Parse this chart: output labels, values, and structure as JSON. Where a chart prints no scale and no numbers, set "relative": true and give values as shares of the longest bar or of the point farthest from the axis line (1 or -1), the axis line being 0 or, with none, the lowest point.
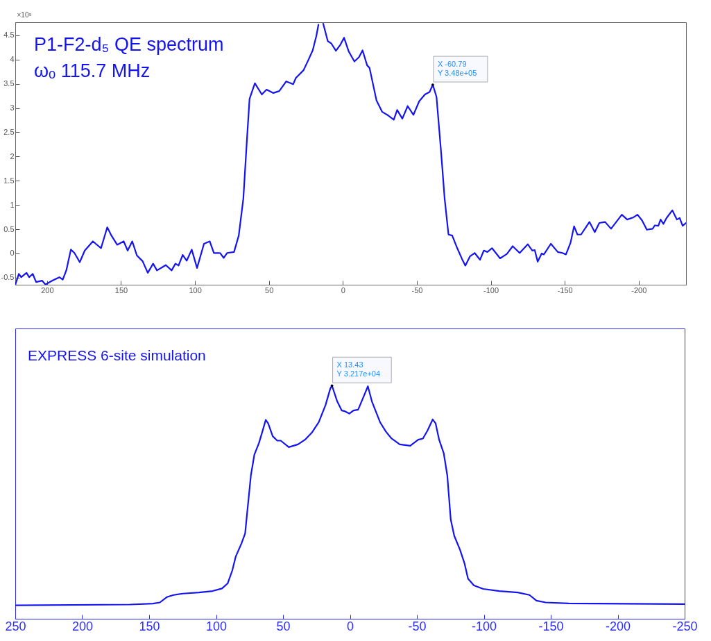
{
  "chart_data": [
    {
      "type": "line",
      "ylabel": "×10⁵",
      "xlim": [
        221.5,
        -232
      ],
      "ylim": [
        -0.645,
        4.77
      ],
      "xticks": [
        200,
        150,
        100,
        50,
        0,
        -50,
        -100,
        -150,
        -200
      ],
      "yticks": [
        -0.5,
        0,
        0.5,
        1,
        1.5,
        2,
        2.5,
        3,
        3.5,
        4,
        4.5
      ],
      "x": [
        221.4,
        219.1,
        217.5,
        213.9,
        212.1,
        209.7,
        207.4,
        203.4,
        201.1,
        196.4,
        191.7,
        189.4,
        187.0,
        183.9,
        181.5,
        177.9,
        174.5,
        169.0,
        166.7,
        163.5,
        159.3,
        156.5,
        152.6,
        148.2,
        145.5,
        142.4,
        139.3,
        135.4,
        131.9,
        128.3,
        125.7,
        119.7,
        115.8,
        113.2,
        111.1,
        108.3,
        105.6,
        102.2,
        98.6,
        93.9,
        90.0,
        87.2,
        83.0,
        80.6,
        78.3,
        73.6,
        70.4,
        67.3,
        64.9,
        63.1,
        59.5,
        54.8,
        51.6,
        47.0,
        43.0,
        38.3,
        33.6,
        31.8,
        26.6,
        23.5,
        20.4,
        18.0,
        16.5,
        15.2,
        14.0,
        13.3,
        10.2,
        7.8,
        4.7,
        1.6,
        -0.8,
        -3.9,
        -7.8,
        -10.9,
        -13.3,
        -16.4,
        -18.0,
        -22.7,
        -26.6,
        -30.5,
        -34.4,
        -36.7,
        -40.2,
        -43.8,
        -47.7,
        -51.6,
        -55.5,
        -58.6,
        -60.79,
        -63.3,
        -66.4,
        -68.8,
        -71.4,
        -73.9,
        -77.3,
        -80.5,
        -82.8,
        -85.9,
        -89.1,
        -92.7,
        -95.3,
        -97.7,
        -100.8,
        -106.3,
        -110.9,
        -114.8,
        -119.5,
        -125.0,
        -128.1,
        -129.7,
        -131.7,
        -134.4,
        -135.9,
        -140.6,
        -145.3,
        -148.4,
        -150.8,
        -153.9,
        -156.3,
        -158.6,
        -161.0,
        -166.7,
        -170.3,
        -173.4,
        -177.3,
        -181.3,
        -188.6,
        -192.2,
        -196.1,
        -199.2,
        -202.3,
        -205.5,
        -209.4,
        -210.9,
        -213.3,
        -214.8,
        -216.7,
        -218.8,
        -222.7,
        -225.8,
        -227.7,
        -229.7,
        -232.0
      ],
      "series": [
        {
          "color": "#1414f0",
          "values": [
            -0.64,
            -0.42,
            -0.49,
            -0.4,
            -0.49,
            -0.42,
            -0.59,
            -0.56,
            -0.64,
            -0.56,
            -0.49,
            -0.54,
            -0.35,
            0.08,
            0.01,
            -0.18,
            0.06,
            0.25,
            0.19,
            0.11,
            0.54,
            0.37,
            0.18,
            0.25,
            0.06,
            0.25,
            -0.04,
            -0.16,
            -0.4,
            -0.21,
            -0.35,
            -0.24,
            -0.35,
            -0.21,
            -0.25,
            -0.03,
            -0.15,
            0.08,
            -0.3,
            0.2,
            0.25,
            0.01,
            0.01,
            -0.09,
            0.01,
            0.03,
            0.37,
            1.13,
            2.33,
            3.19,
            3.51,
            3.28,
            3.38,
            3.31,
            3.35,
            3.55,
            3.49,
            3.62,
            3.78,
            3.98,
            4.19,
            4.48,
            4.72,
            null,
            null,
            4.74,
            4.38,
            4.33,
            4.18,
            4.31,
            4.45,
            4.17,
            3.96,
            4.05,
            4.19,
            3.88,
            3.83,
            3.16,
            2.92,
            2.85,
            2.76,
            2.96,
            2.78,
            3.04,
            2.86,
            3.14,
            3.28,
            3.33,
            3.48,
            3.23,
            2.09,
            1.13,
            0.39,
            0.37,
            0.11,
            -0.11,
            -0.25,
            -0.06,
            0.01,
            -0.13,
            0.06,
            0.03,
            0.11,
            -0.1,
            -0.01,
            0.15,
            0.01,
            0.19,
            0.06,
            0.07,
            -0.17,
            0.0,
            -0.02,
            0.2,
            0.03,
            0.01,
            -0.02,
            0.22,
            0.56,
            0.39,
            0.39,
            0.65,
            0.44,
            0.63,
            0.65,
            0.51,
            0.8,
            0.7,
            0.74,
            0.8,
            0.68,
            0.49,
            0.51,
            0.58,
            0.57,
            0.7,
            0.61,
            0.73,
            0.89,
            0.7,
            0.73,
            0.57,
            0.63
          ]
        }
      ],
      "annotations": [
        "P1-F2-d₅ QE spectrum",
        "ωₒ 115.7 MHz",
        {
          "text": "X -60.79\nY 3.48e+05",
          "x": -60.79,
          "y": 3.48
        }
      ]
    },
    {
      "type": "line",
      "relative": true,
      "tick_labels": "x",
      "xlim": [
        250,
        -250
      ],
      "xticks": [
        250,
        200,
        150,
        100,
        50,
        0,
        -50,
        -100,
        -150,
        -200,
        -250
      ],
      "x": [
        250,
        164.3,
        147.1,
        142.0,
        136.8,
        131.7,
        124.8,
        112.8,
        102.6,
        95.6,
        91.3,
        87.9,
        85.3,
        81.1,
        78.3,
        76.6,
        74.0,
        71.4,
        68.0,
        65.4,
        62.9,
        61.1,
        57.7,
        54.3,
        51.7,
        45.7,
        38.8,
        33.6,
        28.5,
        23.3,
        18.2,
        14.7,
        13.43,
        9.5,
        6.1,
        4.3,
        0.5,
        -2.6,
        -6.1,
        -9.5,
        -13.4,
        -16.4,
        -22.5,
        -26.8,
        -31.1,
        -37.2,
        -45.0,
        -51.0,
        -54.5,
        -58.0,
        -61.8,
        -64.0,
        -66.6,
        -70.1,
        -72.7,
        -75.3,
        -77.9,
        -82.2,
        -85.6,
        -88.2,
        -92.6,
        -99.5,
        -111.6,
        -125.4,
        -134.1,
        -139.3,
        -146.2,
        -163.5,
        -250
      ],
      "series": [
        {
          "color": "#1414f0",
          "values": [
            0.058,
            0.061,
            0.065,
            0.07,
            0.093,
            0.102,
            0.108,
            0.113,
            0.119,
            0.13,
            0.152,
            0.207,
            0.267,
            0.322,
            0.366,
            0.465,
            0.615,
            0.704,
            0.753,
            0.803,
            0.853,
            0.838,
            0.783,
            0.764,
            0.764,
            0.736,
            0.748,
            0.768,
            0.798,
            0.843,
            0.917,
            0.987,
            1,
            0.932,
            0.893,
            0.891,
            0.88,
            0.893,
            0.897,
            0.943,
            0.997,
            0.932,
            0.843,
            0.803,
            0.773,
            0.748,
            0.742,
            0.768,
            0.773,
            0.808,
            0.855,
            0.838,
            0.768,
            0.709,
            0.615,
            0.425,
            0.356,
            0.296,
            0.237,
            0.172,
            0.143,
            0.128,
            0.119,
            0.113,
            0.102,
            0.078,
            0.07,
            0.066,
            0.063
          ]
        }
      ],
      "annotations": [
        "EXPRESS 6-site simulation",
        {
          "text": "X 13.43\nY 3.217e+04",
          "x": 13.43,
          "y": 1
        }
      ]
    }
  ]
}
